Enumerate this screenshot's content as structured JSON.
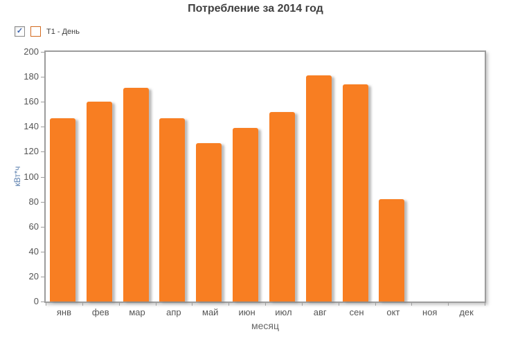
{
  "title": "Потребление за 2014 год",
  "legend": {
    "checkbox_checked": true,
    "check_glyph": "✓",
    "label": "T1 - День",
    "swatch_color": "#f87e22"
  },
  "chart_data": {
    "type": "bar",
    "title": "Потребление за 2014 год",
    "categories": [
      "янв",
      "фев",
      "мар",
      "апр",
      "май",
      "июн",
      "июл",
      "авг",
      "сен",
      "окт",
      "ноя",
      "дек"
    ],
    "series": [
      {
        "name": "T1 - День",
        "values": [
          147,
          160,
          171,
          147,
          127,
          139,
          152,
          181,
          174,
          82,
          0,
          0
        ]
      }
    ],
    "xlabel": "месяц",
    "ylabel": "кВт*ч",
    "ylim": [
      0,
      200
    ],
    "yticks": [
      0,
      20,
      40,
      60,
      80,
      100,
      120,
      140,
      160,
      180,
      200
    ],
    "grid": false,
    "legend_position": "top-left"
  },
  "colors": {
    "bar": "#f87e22",
    "bar_swatch_border": "#d2691e",
    "plot_border": "#9c9c9c",
    "title_text": "#404040",
    "tick_text": "#555555",
    "xlabel_text": "#666666",
    "ylabel_text": "#5b7fae",
    "checkmark": "#3a62ad"
  }
}
